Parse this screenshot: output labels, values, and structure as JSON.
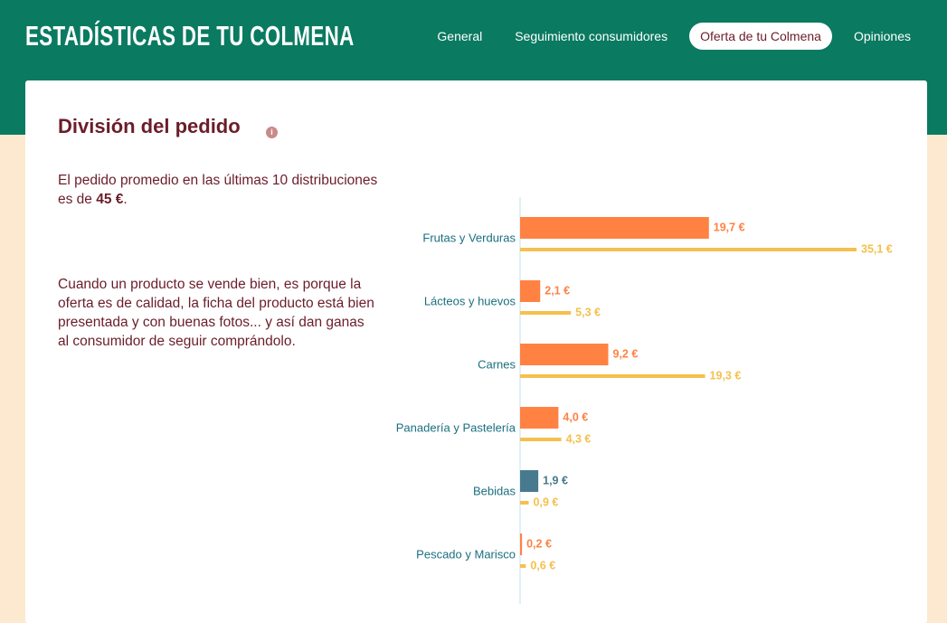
{
  "header": {
    "title": "ESTADÍSTICAS DE TU COLMENA",
    "nav": [
      "General",
      "Seguimiento consumidores",
      "Oferta de tu Colmena",
      "Opiniones"
    ],
    "active": 2
  },
  "section": {
    "title": "División del pedido",
    "intro": {
      "text": "El pedido promedio en las últimas 10 distribuciones es de ",
      "highlight": "45 €",
      "end": "."
    },
    "note": "Cuando un producto se vende bien, es porque la oferta es de calidad, la ficha del producto está bien presentada y con buenas fotos... y así dan ganas al consumidor de seguir comprándolo."
  },
  "chart_data": {
    "type": "bar",
    "orientation": "horizontal",
    "categories": [
      "Frutas y Verduras",
      "Lácteos y huevos",
      "Carnes",
      "Panadería y Pastelería",
      "Bebidas",
      "Pescado y Marisco"
    ],
    "xlim": [
      0,
      35.1
    ],
    "series": [
      {
        "color": "#ff8243",
        "colors": [
          "#ff8243",
          "#ff8243",
          "#ff8243",
          "#ff8243",
          "#477a8f",
          "#ff8243"
        ],
        "values": [
          19.7,
          2.1,
          9.2,
          4.0,
          1.9,
          0.2
        ],
        "value_labels": [
          "19,7 €",
          "2,1 €",
          "9,2 €",
          "4,0 €",
          "1,9 €",
          "0,2 €"
        ]
      },
      {
        "color": "#f5c04d",
        "values": [
          35.1,
          5.3,
          19.3,
          4.3,
          0.9,
          0.6
        ],
        "value_labels": [
          "35,1 €",
          "5,3 €",
          "19,3 €",
          "4,3 €",
          "0,9 €",
          "0,6 €"
        ]
      }
    ]
  }
}
